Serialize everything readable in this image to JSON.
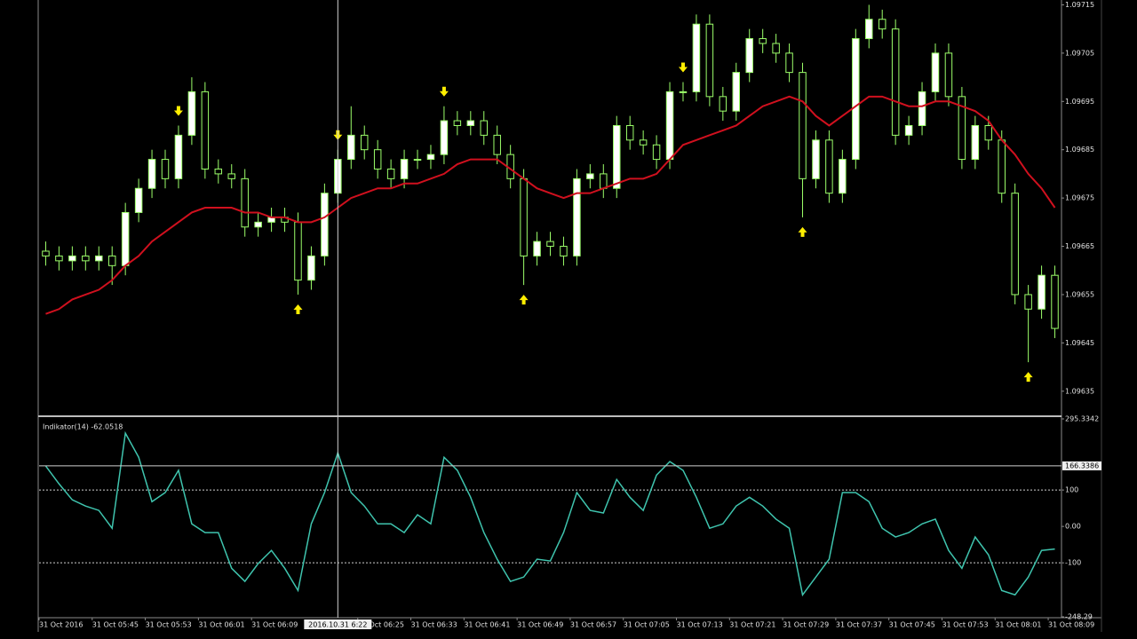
{
  "chart_data": [
    {
      "type": "candlestick",
      "categories": [
        "31 Oct 2016",
        null,
        null,
        null,
        "31 Oct 05:45",
        null,
        null,
        null,
        "31 Oct 05:53",
        null,
        null,
        null,
        "31 Oct 06:01",
        null,
        null,
        null,
        "31 Oct 06:09",
        null,
        null,
        null,
        null,
        null,
        null,
        null,
        "31 Oct 06:25",
        null,
        null,
        null,
        "31 Oct 06:33",
        null,
        null,
        null,
        "31 Oct 06:41",
        null,
        null,
        null,
        "31 Oct 06:49",
        null,
        null,
        null,
        "31 Oct 06:57",
        null,
        null,
        null,
        "31 Oct 07:05",
        null,
        null,
        null,
        "31 Oct 07:13",
        null,
        null,
        null,
        "31 Oct 07:21",
        null,
        null,
        null,
        "31 Oct 07:29",
        null,
        null,
        null,
        "31 Oct 07:37",
        null,
        null,
        null,
        "31 Oct 07:45",
        null,
        null,
        null,
        "31 Oct 07:53",
        null,
        null,
        null,
        "31 Oct 08:01",
        null,
        null,
        null,
        "31 Oct 08:09"
      ],
      "open": [
        1.09664,
        1.09663,
        1.09662,
        1.09663,
        1.09662,
        1.09663,
        1.09661,
        1.09672,
        1.09677,
        1.09683,
        1.09679,
        1.09688,
        1.09697,
        1.09681,
        1.0968,
        1.09679,
        1.09669,
        1.0967,
        1.09671,
        1.0967,
        1.09658,
        1.09663,
        1.09676,
        1.09683,
        1.09688,
        1.09685,
        1.09681,
        1.09679,
        1.09683,
        1.09683,
        1.09684,
        1.09691,
        1.0969,
        1.09691,
        1.09688,
        1.09684,
        1.09679,
        1.09663,
        1.09666,
        1.09665,
        1.09663,
        1.09679,
        1.0968,
        1.09677,
        1.0969,
        1.09687,
        1.09686,
        1.09683,
        1.09697,
        1.09697,
        1.09711,
        1.09696,
        1.09693,
        1.09701,
        1.09708,
        1.09707,
        1.09705,
        1.09701,
        1.09679,
        1.09687,
        1.09676,
        1.09683,
        1.09708,
        1.09712,
        1.0971,
        1.09688,
        1.0969,
        1.09697,
        1.09705,
        1.09696,
        1.09683,
        1.0969,
        1.09687,
        1.09676,
        1.09655,
        1.09652,
        1.09659
      ],
      "high": [
        1.09666,
        1.09665,
        1.09665,
        1.09665,
        1.09665,
        1.09665,
        1.09674,
        1.09679,
        1.09685,
        1.09685,
        1.0969,
        1.097,
        1.09699,
        1.09683,
        1.09682,
        1.09681,
        1.09672,
        1.09673,
        1.09673,
        1.09672,
        1.09665,
        1.09678,
        1.09685,
        1.09694,
        1.0969,
        1.09687,
        1.09683,
        1.09685,
        1.09685,
        1.09686,
        1.09694,
        1.09693,
        1.09693,
        1.09693,
        1.0969,
        1.09686,
        1.09681,
        1.09668,
        1.09668,
        1.09667,
        1.09681,
        1.09682,
        1.09682,
        1.09692,
        1.09692,
        1.09689,
        1.09688,
        1.09699,
        1.09699,
        1.09713,
        1.09713,
        1.09698,
        1.09703,
        1.0971,
        1.0971,
        1.09709,
        1.09707,
        1.09703,
        1.09689,
        1.09689,
        1.09685,
        1.0971,
        1.09715,
        1.09714,
        1.09712,
        1.09692,
        1.09699,
        1.09707,
        1.09707,
        1.09698,
        1.09692,
        1.09692,
        1.09689,
        1.09678,
        1.09657,
        1.09661,
        1.09661
      ],
      "low": [
        1.09661,
        1.0966,
        1.0966,
        1.0966,
        1.0966,
        1.09657,
        1.09659,
        1.0967,
        1.09675,
        1.09677,
        1.09677,
        1.09686,
        1.09679,
        1.09678,
        1.09677,
        1.09667,
        1.09667,
        1.09668,
        1.09668,
        1.09655,
        1.09656,
        1.09661,
        1.09674,
        1.09681,
        1.09683,
        1.09679,
        1.09677,
        1.09677,
        1.09681,
        1.09681,
        1.09682,
        1.09688,
        1.09688,
        1.09686,
        1.09682,
        1.09677,
        1.09657,
        1.09661,
        1.09663,
        1.09661,
        1.09661,
        1.09677,
        1.09675,
        1.09675,
        1.09685,
        1.09684,
        1.09681,
        1.09681,
        1.09695,
        1.09695,
        1.09694,
        1.09691,
        1.09691,
        1.09699,
        1.09705,
        1.09703,
        1.09699,
        1.09671,
        1.09677,
        1.09674,
        1.09674,
        1.09681,
        1.09706,
        1.09708,
        1.09686,
        1.09686,
        1.09688,
        1.09695,
        1.09694,
        1.09681,
        1.09681,
        1.09685,
        1.09674,
        1.09653,
        1.09641,
        1.0965,
        1.09646
      ],
      "close": [
        1.09663,
        1.09662,
        1.09663,
        1.09662,
        1.09663,
        1.09661,
        1.09672,
        1.09677,
        1.09683,
        1.09679,
        1.09688,
        1.09697,
        1.09681,
        1.0968,
        1.09679,
        1.09669,
        1.0967,
        1.09671,
        1.0967,
        1.09658,
        1.09663,
        1.09676,
        1.09683,
        1.09688,
        1.09685,
        1.09681,
        1.09679,
        1.09683,
        1.09683,
        1.09684,
        1.09691,
        1.0969,
        1.09691,
        1.09688,
        1.09684,
        1.09679,
        1.09663,
        1.09666,
        1.09665,
        1.09663,
        1.09679,
        1.0968,
        1.09677,
        1.0969,
        1.09687,
        1.09686,
        1.09683,
        1.09697,
        1.09697,
        1.09711,
        1.09696,
        1.09693,
        1.09701,
        1.09708,
        1.09707,
        1.09705,
        1.09701,
        1.09679,
        1.09687,
        1.09676,
        1.09683,
        1.09708,
        1.09712,
        1.0971,
        1.09688,
        1.0969,
        1.09697,
        1.09705,
        1.09696,
        1.09683,
        1.0969,
        1.09687,
        1.09676,
        1.09655,
        1.09652,
        1.09659,
        1.09648
      ],
      "up_color": "#ffffff",
      "down_color": "#000000",
      "wick_color": "#9cff6a",
      "overlay": {
        "color": "#d0101e",
        "values": [
          1.09651,
          1.09652,
          1.09654,
          1.09655,
          1.09656,
          1.09658,
          1.09661,
          1.09663,
          1.09666,
          1.09668,
          1.0967,
          1.09672,
          1.09673,
          1.09673,
          1.09673,
          1.09672,
          1.09672,
          1.09671,
          1.09671,
          1.0967,
          1.0967,
          1.09671,
          1.09673,
          1.09675,
          1.09676,
          1.09677,
          1.09677,
          1.09678,
          1.09678,
          1.09679,
          1.0968,
          1.09682,
          1.09683,
          1.09683,
          1.09683,
          1.09681,
          1.09679,
          1.09677,
          1.09676,
          1.09675,
          1.09676,
          1.09676,
          1.09677,
          1.09678,
          1.09679,
          1.09679,
          1.0968,
          1.09683,
          1.09686,
          1.09687,
          1.09688,
          1.09689,
          1.0969,
          1.09692,
          1.09694,
          1.09695,
          1.09696,
          1.09695,
          1.09692,
          1.0969,
          1.09692,
          1.09694,
          1.09696,
          1.09696,
          1.09695,
          1.09694,
          1.09694,
          1.09695,
          1.09695,
          1.09694,
          1.09693,
          1.09691,
          1.09687,
          1.09684,
          1.0968,
          1.09677,
          1.09673
        ]
      },
      "sell_signals": [
        10,
        22,
        30,
        48
      ],
      "buy_signals": [
        19,
        36,
        57,
        74
      ],
      "signal_color": "#ffee00",
      "ylim": [
        1.0963,
        1.09716
      ],
      "yticks": [
        1.09715,
        1.09705,
        1.09695,
        1.09685,
        1.09675,
        1.09665,
        1.09655,
        1.09645,
        1.09635
      ]
    },
    {
      "type": "line",
      "title": "Indikator(14) -62.0518",
      "color": "#3fc4ae",
      "values": [
        166,
        117,
        73,
        56,
        44,
        -5,
        256,
        190,
        68,
        93,
        154,
        7,
        -17,
        -17,
        -115,
        -151,
        -102,
        -66,
        -115,
        -176,
        7,
        93,
        202,
        93,
        56,
        7,
        7,
        -17,
        32,
        7,
        190,
        154,
        80,
        -17,
        -90,
        -151,
        -139,
        -90,
        -95,
        -17,
        93,
        44,
        37,
        129,
        80,
        44,
        141,
        178,
        154,
        80,
        -5,
        7,
        56,
        80,
        56,
        20,
        -5,
        -188,
        -139,
        -90,
        93,
        93,
        68,
        -5,
        -29,
        -17,
        7,
        20,
        -66,
        -115,
        -29,
        -78,
        -176,
        -188,
        -139,
        -66,
        -62.0518
      ],
      "ylim": [
        -248.29,
        295.3342
      ],
      "yticks": [
        295.3342,
        100,
        {
          "value": 0,
          "label": "0.00"
        },
        -100,
        -248.29
      ],
      "levels": [
        100,
        -100
      ],
      "crosshair": {
        "index": 22.5,
        "value": 166.3386,
        "label": "2016.10.31 6:22"
      }
    }
  ]
}
